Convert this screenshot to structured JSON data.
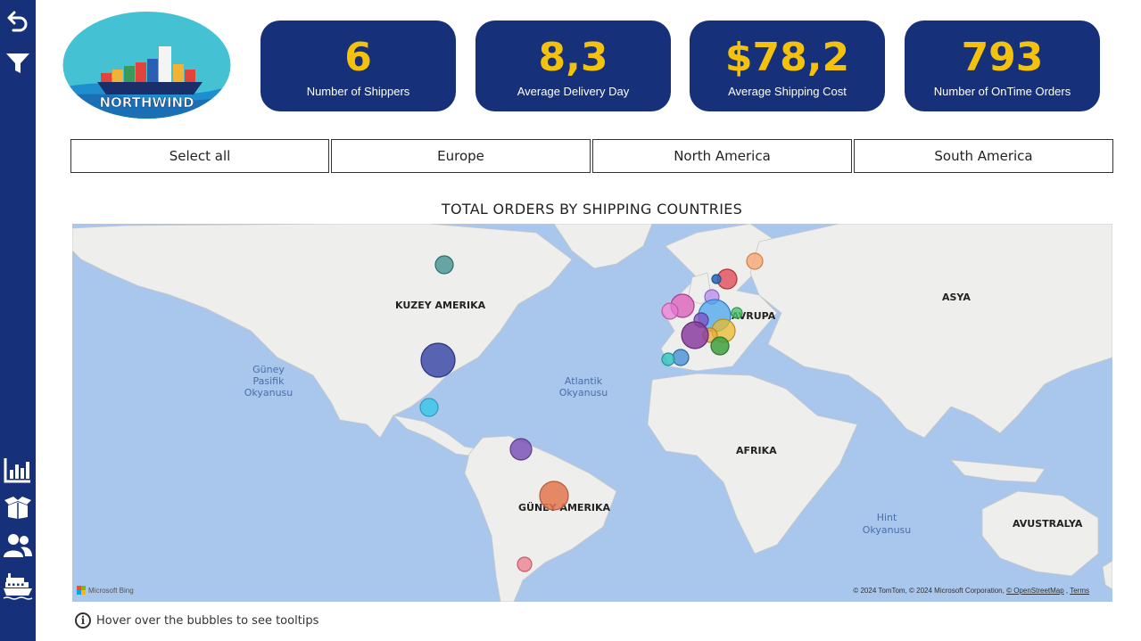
{
  "sidebar": {
    "top_icons": [
      "back-arrow-icon",
      "filter-icon"
    ],
    "bottom_icons": [
      "bar-chart-icon",
      "box-icon",
      "users-icon",
      "ship-icon"
    ]
  },
  "logo": {
    "text": "NORTHWIND"
  },
  "kpis": [
    {
      "value": "6",
      "label": "Number of Shippers"
    },
    {
      "value": "8,3",
      "label": "Average Delivery Day"
    },
    {
      "value": "$78,2",
      "label": "Average Shipping Cost"
    },
    {
      "value": "793",
      "label": "Number of OnTime Orders"
    }
  ],
  "slicer": [
    "Select all",
    "Europe",
    "North America",
    "South America"
  ],
  "map": {
    "title": "TOTAL ORDERS BY SHIPPING COUNTRIES",
    "regions": {
      "north_america": "KUZEY AMERIKA",
      "south_america": "GÜNEY AMERIKA",
      "europe": "AVRUPA",
      "asia": "ASYA",
      "africa": "AFRIKA",
      "australia": "AVUSTRALYA"
    },
    "oceans": {
      "pacific": [
        "Güney",
        "Pasifik",
        "Okyanusu"
      ],
      "atlantic": [
        "Atlantik",
        "Okyanusu"
      ],
      "indian": [
        "Hint",
        "Okyanusu"
      ]
    },
    "attribution_text": "© 2024 TomTom, © 2024 Microsoft Corporation,",
    "attribution_osm": "© OpenStreetMap",
    "attribution_terms": "Terms",
    "bing": "Microsoft Bing"
  },
  "tooltip_hint": "Hover over the bubbles to see tooltips",
  "colors": {
    "navy": "#16307a",
    "kpi_value": "#f4c20d",
    "water": "#a9c6ec",
    "land": "#eeeeec"
  }
}
